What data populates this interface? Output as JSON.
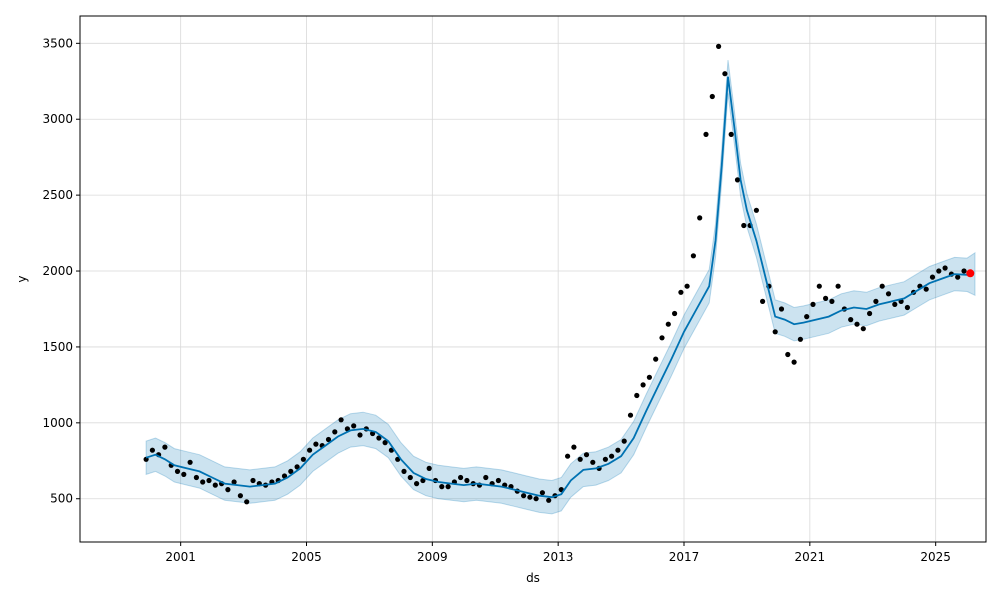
{
  "chart_data": {
    "type": "line",
    "title": "",
    "xlabel": "ds",
    "ylabel": "y",
    "x_tick_labels": [
      "2001",
      "2005",
      "2009",
      "2013",
      "2017",
      "2021",
      "2025"
    ],
    "x_ticks": [
      2001,
      2005,
      2009,
      2013,
      2017,
      2021,
      2025
    ],
    "y_tick_labels": [
      "500",
      "1000",
      "1500",
      "2000",
      "2500",
      "3000",
      "3500"
    ],
    "y_ticks": [
      500,
      1000,
      1500,
      2000,
      2500,
      3000,
      3500
    ],
    "xlim": [
      1997.8,
      2026.6
    ],
    "ylim": [
      215,
      3680
    ],
    "grid": true,
    "colors": {
      "forecast_line": "#0072B2",
      "interval_band": "#0072B2",
      "observed_points": "#000000",
      "highlight_point": "#ff0000"
    },
    "series": [
      {
        "kind": "forecast",
        "x": [
          1999.9,
          2000.2,
          2000.5,
          2000.8,
          2001.2,
          2001.6,
          2002.0,
          2002.4,
          2002.8,
          2003.2,
          2003.6,
          2004.0,
          2004.4,
          2004.8,
          2005.2,
          2005.6,
          2006.0,
          2006.4,
          2006.8,
          2007.2,
          2007.6,
          2008.0,
          2008.4,
          2008.8,
          2009.2,
          2009.6,
          2010.0,
          2010.4,
          2010.8,
          2011.2,
          2011.6,
          2012.0,
          2012.4,
          2012.8,
          2013.1,
          2013.4,
          2013.8,
          2014.2,
          2014.6,
          2015.0,
          2015.4,
          2015.8,
          2016.2,
          2016.6,
          2017.0,
          2017.4,
          2017.8,
          2018.0,
          2018.2,
          2018.4,
          2018.6,
          2018.8,
          2019.0,
          2019.3,
          2019.6,
          2019.9,
          2020.2,
          2020.5,
          2020.8,
          2021.2,
          2021.6,
          2022.0,
          2022.4,
          2022.8,
          2023.2,
          2023.6,
          2024.0,
          2024.4,
          2024.8,
          2025.2,
          2025.6,
          2026.0
        ],
        "y": [
          770,
          790,
          760,
          720,
          700,
          680,
          640,
          600,
          590,
          580,
          590,
          600,
          640,
          700,
          790,
          850,
          910,
          950,
          960,
          940,
          880,
          760,
          670,
          630,
          610,
          600,
          590,
          600,
          590,
          580,
          560,
          540,
          520,
          510,
          530,
          620,
          690,
          700,
          730,
          780,
          900,
          1080,
          1250,
          1420,
          1600,
          1750,
          1900,
          2200,
          2700,
          3280,
          2950,
          2600,
          2400,
          2200,
          1950,
          1700,
          1680,
          1650,
          1660,
          1680,
          1700,
          1740,
          1760,
          1750,
          1780,
          1800,
          1820,
          1870,
          1920,
          1950,
          1980,
          1975
        ]
      },
      {
        "kind": "interval",
        "x": [
          1999.9,
          2000.2,
          2000.5,
          2000.8,
          2001.2,
          2001.6,
          2002.0,
          2002.4,
          2002.8,
          2003.2,
          2003.6,
          2004.0,
          2004.4,
          2004.8,
          2005.2,
          2005.6,
          2006.0,
          2006.4,
          2006.8,
          2007.2,
          2007.6,
          2008.0,
          2008.4,
          2008.8,
          2009.2,
          2009.6,
          2010.0,
          2010.4,
          2010.8,
          2011.2,
          2011.6,
          2012.0,
          2012.4,
          2012.8,
          2013.1,
          2013.4,
          2013.8,
          2014.2,
          2014.6,
          2015.0,
          2015.4,
          2015.8,
          2016.2,
          2016.6,
          2017.0,
          2017.4,
          2017.8,
          2018.0,
          2018.2,
          2018.4,
          2018.6,
          2018.8,
          2019.0,
          2019.3,
          2019.6,
          2019.9,
          2020.2,
          2020.5,
          2020.8,
          2021.2,
          2021.6,
          2022.0,
          2022.4,
          2022.8,
          2023.2,
          2023.6,
          2024.0,
          2024.4,
          2024.8,
          2025.2,
          2025.6,
          2026.0,
          2026.25
        ],
        "upper": [
          880,
          900,
          870,
          830,
          810,
          790,
          750,
          710,
          700,
          690,
          700,
          710,
          750,
          810,
          900,
          960,
          1020,
          1060,
          1070,
          1050,
          990,
          870,
          780,
          740,
          720,
          710,
          700,
          710,
          700,
          690,
          670,
          650,
          630,
          620,
          640,
          730,
          800,
          810,
          840,
          890,
          1010,
          1190,
          1360,
          1530,
          1710,
          1860,
          2010,
          2310,
          2810,
          3390,
          3060,
          2710,
          2510,
          2310,
          2060,
          1810,
          1790,
          1760,
          1770,
          1790,
          1810,
          1850,
          1870,
          1860,
          1890,
          1910,
          1930,
          1980,
          2030,
          2060,
          2090,
          2085,
          2120
        ],
        "lower": [
          660,
          680,
          650,
          610,
          590,
          570,
          530,
          490,
          480,
          470,
          480,
          490,
          530,
          590,
          680,
          740,
          800,
          840,
          850,
          830,
          770,
          650,
          560,
          520,
          500,
          490,
          480,
          490,
          480,
          470,
          450,
          430,
          410,
          400,
          420,
          510,
          580,
          590,
          620,
          670,
          790,
          970,
          1140,
          1310,
          1490,
          1640,
          1790,
          2090,
          2590,
          3170,
          2840,
          2490,
          2290,
          2090,
          1840,
          1590,
          1570,
          1540,
          1550,
          1570,
          1590,
          1630,
          1650,
          1640,
          1670,
          1690,
          1710,
          1760,
          1810,
          1840,
          1870,
          1865,
          1840
        ]
      },
      {
        "kind": "observed",
        "x": [
          1999.9,
          2000.1,
          2000.3,
          2000.5,
          2000.7,
          2000.9,
          2001.1,
          2001.3,
          2001.5,
          2001.7,
          2001.9,
          2002.1,
          2002.3,
          2002.5,
          2002.7,
          2002.9,
          2003.1,
          2003.3,
          2003.5,
          2003.7,
          2003.9,
          2004.1,
          2004.3,
          2004.5,
          2004.7,
          2004.9,
          2005.1,
          2005.3,
          2005.5,
          2005.7,
          2005.9,
          2006.1,
          2006.3,
          2006.5,
          2006.7,
          2006.9,
          2007.1,
          2007.3,
          2007.5,
          2007.7,
          2007.9,
          2008.1,
          2008.3,
          2008.5,
          2008.7,
          2008.9,
          2009.1,
          2009.3,
          2009.5,
          2009.7,
          2009.9,
          2010.1,
          2010.3,
          2010.5,
          2010.7,
          2010.9,
          2011.1,
          2011.3,
          2011.5,
          2011.7,
          2011.9,
          2012.1,
          2012.3,
          2012.5,
          2012.7,
          2012.9,
          2013.1,
          2013.3,
          2013.5,
          2013.7,
          2013.9,
          2014.1,
          2014.3,
          2014.5,
          2014.7,
          2014.9,
          2015.1,
          2015.3,
          2015.5,
          2015.7,
          2015.9,
          2016.1,
          2016.3,
          2016.5,
          2016.7,
          2016.9,
          2017.1,
          2017.3,
          2017.5,
          2017.7,
          2017.9,
          2018.1,
          2018.3,
          2018.5,
          2018.7,
          2018.9,
          2019.1,
          2019.3,
          2019.5,
          2019.7,
          2019.9,
          2020.1,
          2020.3,
          2020.5,
          2020.7,
          2020.9,
          2021.1,
          2021.3,
          2021.5,
          2021.7,
          2021.9,
          2022.1,
          2022.3,
          2022.5,
          2022.7,
          2022.9,
          2023.1,
          2023.3,
          2023.5,
          2023.7,
          2023.9,
          2024.1,
          2024.3,
          2024.5,
          2024.7,
          2024.9,
          2025.1,
          2025.3,
          2025.5,
          2025.7,
          2025.9
        ],
        "y": [
          760,
          820,
          790,
          840,
          720,
          680,
          660,
          740,
          640,
          610,
          620,
          590,
          600,
          560,
          610,
          520,
          480,
          620,
          600,
          590,
          610,
          620,
          650,
          680,
          710,
          760,
          820,
          860,
          850,
          890,
          940,
          1020,
          960,
          980,
          920,
          960,
          930,
          900,
          870,
          820,
          760,
          680,
          640,
          600,
          620,
          700,
          620,
          580,
          580,
          610,
          640,
          620,
          600,
          590,
          640,
          600,
          620,
          590,
          580,
          550,
          520,
          510,
          500,
          540,
          490,
          520,
          560,
          780,
          840,
          760,
          790,
          740,
          700,
          760,
          780,
          820,
          880,
          1050,
          1180,
          1250,
          1300,
          1420,
          1560,
          1650,
          1720,
          1860,
          1900,
          2100,
          2350,
          2900,
          3150,
          3480,
          3300,
          2900,
          2600,
          2300,
          2300,
          2400,
          1800,
          1900,
          1600,
          1750,
          1450,
          1400,
          1550,
          1700,
          1780,
          1900,
          1820,
          1800,
          1900,
          1750,
          1680,
          1650,
          1620,
          1720,
          1800,
          1900,
          1850,
          1780,
          1800,
          1760,
          1860,
          1900,
          1880,
          1960,
          2000,
          2020,
          1980,
          1960,
          2000
        ]
      },
      {
        "kind": "highlight",
        "x": [
          2026.1
        ],
        "y": [
          1985
        ]
      }
    ]
  }
}
